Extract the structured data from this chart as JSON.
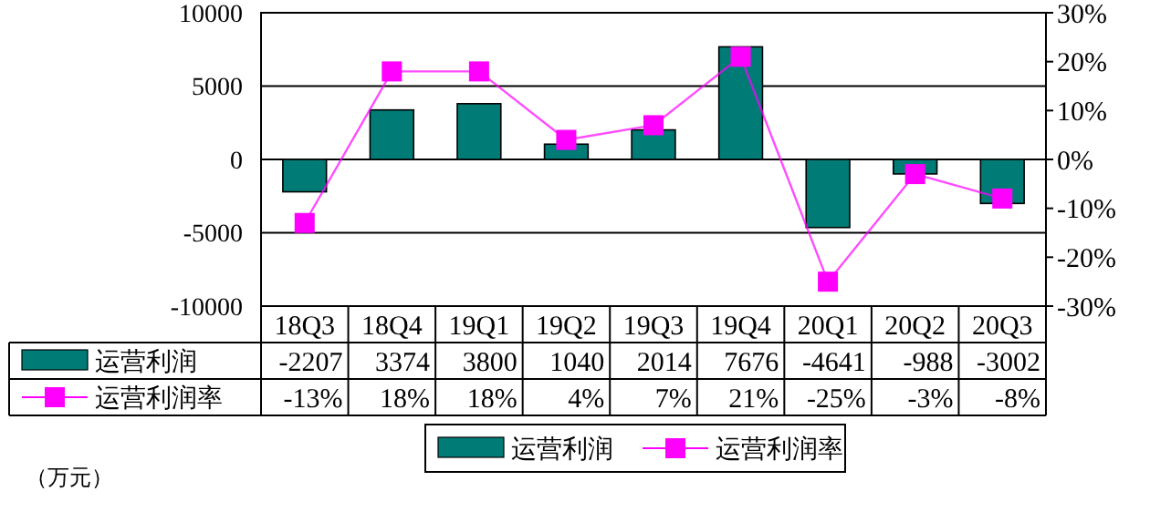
{
  "chart_data": {
    "type": "bar",
    "categories": [
      "18Q3",
      "18Q4",
      "19Q1",
      "19Q2",
      "19Q3",
      "19Q4",
      "20Q1",
      "20Q2",
      "20Q3"
    ],
    "series": [
      {
        "name": "运营利润",
        "color": "#007b76",
        "values": [
          -2207,
          3374,
          3800,
          1040,
          2014,
          7676,
          -4641,
          -988,
          -3002
        ],
        "value_labels": [
          "-2207",
          "3374",
          "3800",
          "1040",
          "2014",
          "7676",
          "-4641",
          "-988",
          "-3002"
        ]
      },
      {
        "name": "运营利润率",
        "type": "line",
        "axis": "y2",
        "color": "#ff00ff",
        "values": [
          -13,
          18,
          18,
          4,
          7,
          21,
          -25,
          -3,
          -8
        ],
        "value_labels": [
          "-13%",
          "18%",
          "18%",
          "4%",
          "7%",
          "21%",
          "-25%",
          "-3%",
          "-8%"
        ]
      }
    ],
    "ylim": [
      -10000,
      10000
    ],
    "yticks": [
      -10000,
      -5000,
      0,
      5000,
      10000
    ],
    "y2lim": [
      -30,
      30
    ],
    "y2ticks": [
      {
        "value": -30,
        "label": "-30%"
      },
      {
        "value": -20,
        "label": "-20%"
      },
      {
        "value": -10,
        "label": "-10%"
      },
      {
        "value": 0,
        "label": "0%"
      },
      {
        "value": 10,
        "label": "10%"
      },
      {
        "value": 20,
        "label": "20%"
      },
      {
        "value": 30,
        "label": "30%"
      }
    ],
    "grid": "y",
    "legend": "bottom",
    "marker": "square",
    "line_style": "solid",
    "annotations": [
      "（万元）"
    ]
  }
}
